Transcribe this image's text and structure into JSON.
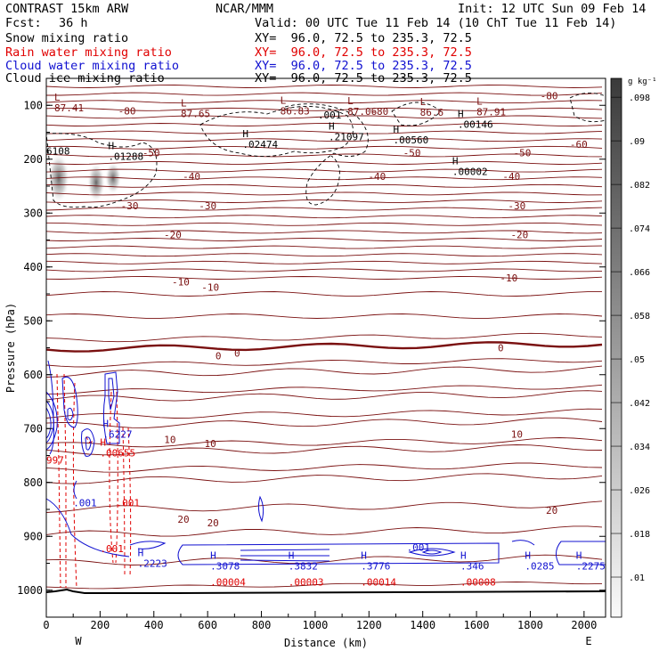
{
  "header": {
    "title": "CONTRAST 15km ARW",
    "org": "NCAR/MMM",
    "init": "Init: 12 UTC Sun 09 Feb 14",
    "fcst_label": "Fcst:",
    "fcst_value": "36 h",
    "valid": "Valid: 00 UTC Tue 11 Feb 14 (10 ChT Tue 11 Feb 14)"
  },
  "fields": [
    {
      "name": "Snow mixing ratio",
      "xy": "XY=  96.0, 72.5 to 235.3, 72.5",
      "color": "#000000"
    },
    {
      "name": "Rain water mixing ratio",
      "xy": "XY=  96.0, 72.5 to 235.3, 72.5",
      "color": "#e00000"
    },
    {
      "name": "Cloud water mixing ratio",
      "xy": "XY=  96.0, 72.5 to 235.3, 72.5",
      "color": "#1010d0"
    },
    {
      "name": "Cloud ice mixing ratio",
      "xy": "XY=  96.0, 72.5 to 235.3, 72.5",
      "color": "#000000"
    }
  ],
  "colorbar": {
    "unit": "g kg⁻¹",
    "ticks": [
      ".01",
      ".018",
      ".026",
      ".034",
      ".042",
      ".05",
      ".058",
      ".066",
      ".074",
      ".082",
      ".09",
      ".098"
    ]
  },
  "chart_data": {
    "type": "contour cross-section",
    "xlabel": "Distance (km)",
    "ylabel": "Pressure (hPa)",
    "x_ticks": [
      0,
      200,
      400,
      600,
      800,
      1000,
      1200,
      1400,
      1600,
      1800,
      2000
    ],
    "xlim": [
      0,
      2080
    ],
    "y_ticks": [
      100,
      200,
      300,
      400,
      500,
      600,
      700,
      800,
      900,
      1000
    ],
    "ylim": [
      50,
      1050
    ],
    "x_end_labels": {
      "left": "W",
      "right": "E"
    },
    "temperature_labels": [
      {
        "text": "-80",
        "x": 1870,
        "p": 82
      },
      {
        "text": "-80",
        "x": 300,
        "p": 110
      },
      {
        "text": "-80",
        "x": 1240,
        "p": 111
      },
      {
        "text": "-60",
        "x": 1980,
        "p": 172
      },
      {
        "text": "-50",
        "x": 390,
        "p": 188
      },
      {
        "text": "-50",
        "x": 1360,
        "p": 188
      },
      {
        "text": "-50",
        "x": 1770,
        "p": 188
      },
      {
        "text": "-40",
        "x": 540,
        "p": 232
      },
      {
        "text": "-40",
        "x": 1230,
        "p": 232
      },
      {
        "text": "-40",
        "x": 1730,
        "p": 232
      },
      {
        "text": "-30",
        "x": 310,
        "p": 286
      },
      {
        "text": "-30",
        "x": 600,
        "p": 286
      },
      {
        "text": "-30",
        "x": 1750,
        "p": 286
      },
      {
        "text": "-20",
        "x": 470,
        "p": 340
      },
      {
        "text": "-20",
        "x": 1760,
        "p": 340
      },
      {
        "text": "-10",
        "x": 500,
        "p": 428
      },
      {
        "text": "-10",
        "x": 610,
        "p": 438
      },
      {
        "text": "-10",
        "x": 1720,
        "p": 420
      },
      {
        "text": "0",
        "x": 640,
        "p": 565
      },
      {
        "text": "0",
        "x": 710,
        "p": 560
      },
      {
        "text": "0",
        "x": 1690,
        "p": 550
      },
      {
        "text": "10",
        "x": 460,
        "p": 720
      },
      {
        "text": "10",
        "x": 610,
        "p": 728
      },
      {
        "text": "10",
        "x": 1750,
        "p": 710
      },
      {
        "text": "20",
        "x": 510,
        "p": 868
      },
      {
        "text": "20",
        "x": 620,
        "p": 875
      },
      {
        "text": "20",
        "x": 1880,
        "p": 852
      }
    ],
    "extrema": [
      {
        "kind": "L",
        "value": "87.41",
        "x": 30,
        "p": 95,
        "color": "#7a1010"
      },
      {
        "kind": "L",
        "value": "87.65",
        "x": 500,
        "p": 105,
        "color": "#7a1010"
      },
      {
        "kind": "L",
        "value": "86.83",
        "x": 870,
        "p": 100,
        "color": "#7a1010"
      },
      {
        "kind": "L",
        "value": "87.06",
        "x": 1120,
        "p": 101,
        "color": "#7a1010"
      },
      {
        "kind": "L",
        "value": "86.6",
        "x": 1390,
        "p": 103,
        "color": "#7a1010"
      },
      {
        "kind": "L",
        "value": "87.91",
        "x": 1600,
        "p": 102,
        "color": "#7a1010"
      },
      {
        "kind": "H",
        "value": ".00146",
        "x": 1530,
        "p": 125,
        "color": "#000000"
      },
      {
        "kind": "H",
        "value": ".21097",
        "x": 1050,
        "p": 148,
        "color": "#000000"
      },
      {
        "kind": "H",
        "value": ".00560",
        "x": 1290,
        "p": 154,
        "color": "#000000"
      },
      {
        "kind": "H",
        "value": ".02474",
        "x": 730,
        "p": 162,
        "color": "#000000"
      },
      {
        "kind": "H",
        "value": ".01288",
        "x": 230,
        "p": 185,
        "color": "#000000"
      },
      {
        "kind": "H",
        "value": ".00002",
        "x": 1510,
        "p": 213,
        "color": "#000000"
      },
      {
        "kind": "H",
        "value": ".6227",
        "x": 210,
        "p": 700,
        "color": "#1010d0"
      },
      {
        "kind": "H",
        "value": ".00655",
        "x": 200,
        "p": 735,
        "color": "#e00000"
      },
      {
        "kind": "H",
        "value": ".2223",
        "x": 340,
        "p": 940,
        "color": "#1010d0"
      },
      {
        "kind": "H",
        "value": ".3078",
        "x": 610,
        "p": 945,
        "color": "#1010d0"
      },
      {
        "kind": "H",
        "value": ".3832",
        "x": 900,
        "p": 945,
        "color": "#1010d0"
      },
      {
        "kind": "H",
        "value": ".3776",
        "x": 1170,
        "p": 945,
        "color": "#1010d0"
      },
      {
        "kind": "H",
        "value": ".346",
        "x": 1540,
        "p": 945,
        "color": "#1010d0"
      },
      {
        "kind": "H",
        "value": ".0285",
        "x": 1780,
        "p": 945,
        "color": "#1010d0"
      },
      {
        "kind": "H",
        "value": ".2275",
        "x": 1970,
        "p": 945,
        "color": "#1010d0"
      }
    ],
    "other_labels": [
      {
        "text": "6108",
        "x": 0,
        "p": 185,
        "color": "#000000"
      },
      {
        "text": ".001",
        "x": 1010,
        "p": 118,
        "color": "#000000"
      },
      {
        "text": "997",
        "x": 0,
        "p": 758,
        "color": "#e00000"
      },
      {
        "text": ".001",
        "x": 100,
        "p": 838,
        "color": "#1010d0"
      },
      {
        "text": ".001",
        "x": 260,
        "p": 838,
        "color": "#e00000"
      },
      {
        "text": ".001",
        "x": 200,
        "p": 923,
        "color": "#e00000"
      },
      {
        "text": ".001",
        "x": 1340,
        "p": 920,
        "color": "#1010d0"
      },
      {
        "text": ".00004",
        "x": 610,
        "p": 985,
        "color": "#e00000"
      },
      {
        "text": ".00003",
        "x": 900,
        "p": 985,
        "color": "#e00000"
      },
      {
        "text": ".00014",
        "x": 1170,
        "p": 985,
        "color": "#e00000"
      },
      {
        "text": ".00008",
        "x": 1540,
        "p": 985,
        "color": "#e00000"
      }
    ]
  }
}
